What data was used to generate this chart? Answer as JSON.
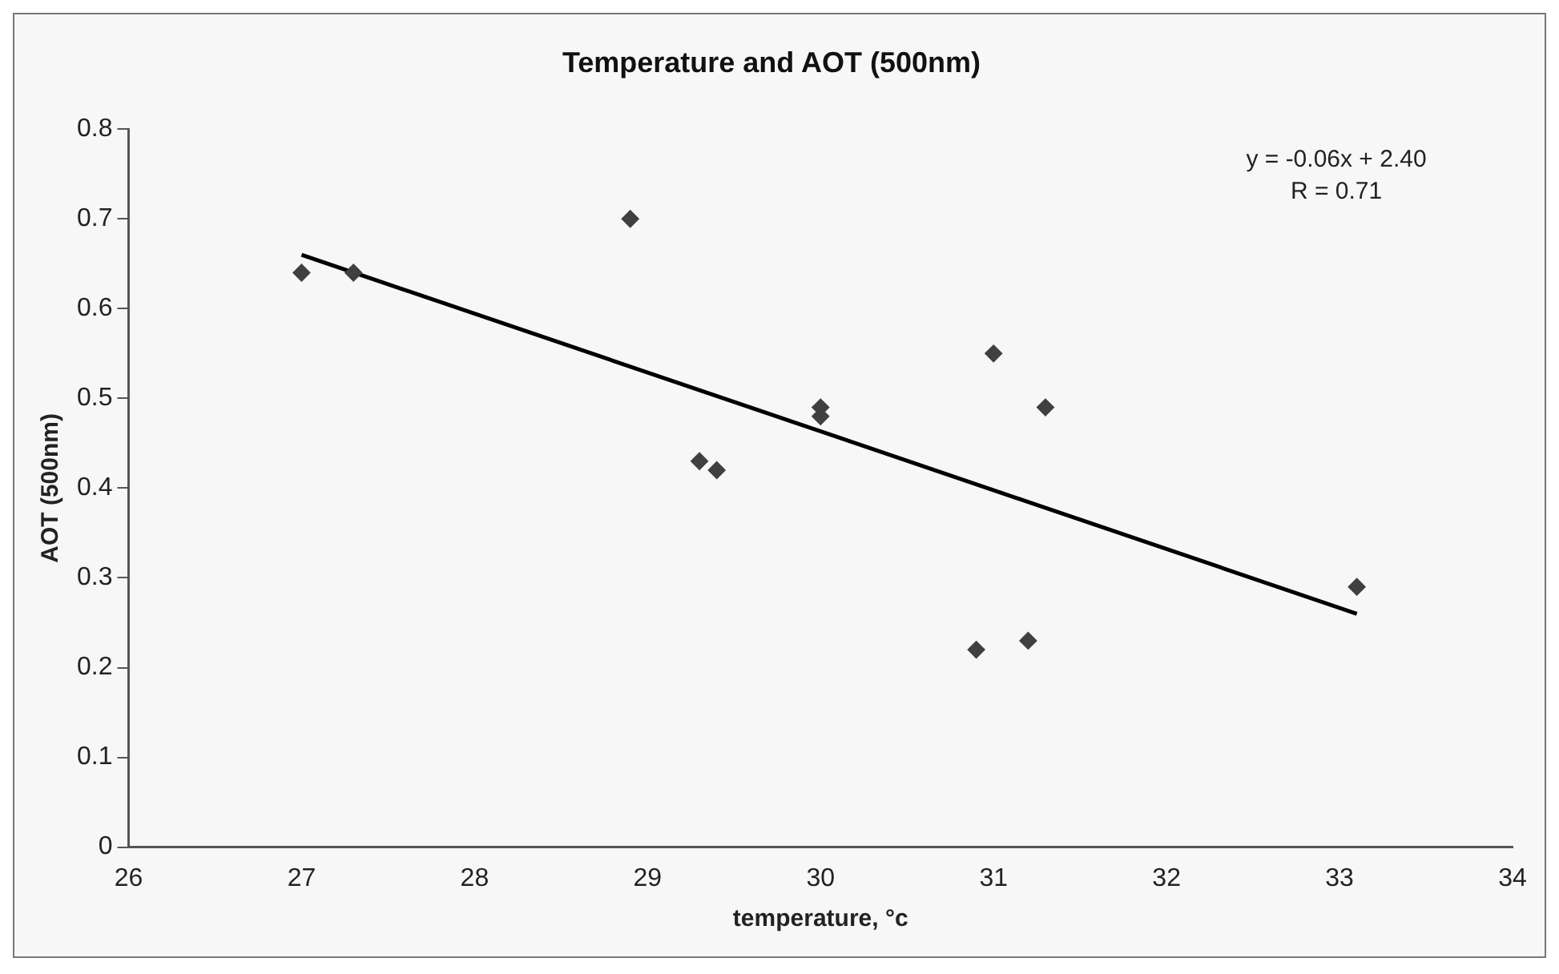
{
  "chart_data": {
    "type": "scatter",
    "title": "Temperature and AOT (500nm)",
    "xlabel": "temperature, °c",
    "ylabel": "AOT (500nm)",
    "xlim": [
      26,
      34
    ],
    "xticks": [
      26,
      27,
      28,
      29,
      30,
      31,
      32,
      33,
      34
    ],
    "ylim": [
      0,
      0.8
    ],
    "yticks": [
      0,
      0.1,
      0.2,
      0.3,
      0.4,
      0.5,
      0.6,
      0.7,
      0.8
    ],
    "marker": "diamond",
    "grid": false,
    "legend": false,
    "annotations": [
      "y = -0.06x + 2.40",
      "R = 0.71"
    ],
    "series": [
      {
        "color": "#404040",
        "x": [
          27.0,
          27.3,
          28.9,
          29.3,
          29.4,
          30.0,
          30.0,
          31.0,
          31.3,
          30.9,
          31.2,
          33.1
        ],
        "values": [
          0.64,
          0.64,
          0.7,
          0.43,
          0.42,
          0.49,
          0.48,
          0.55,
          0.49,
          0.22,
          0.23,
          0.29
        ]
      },
      {
        "type": "line",
        "marker": "none",
        "color": "#000000",
        "x": [
          27.0,
          33.1
        ],
        "values": [
          0.66,
          0.26
        ]
      }
    ]
  }
}
